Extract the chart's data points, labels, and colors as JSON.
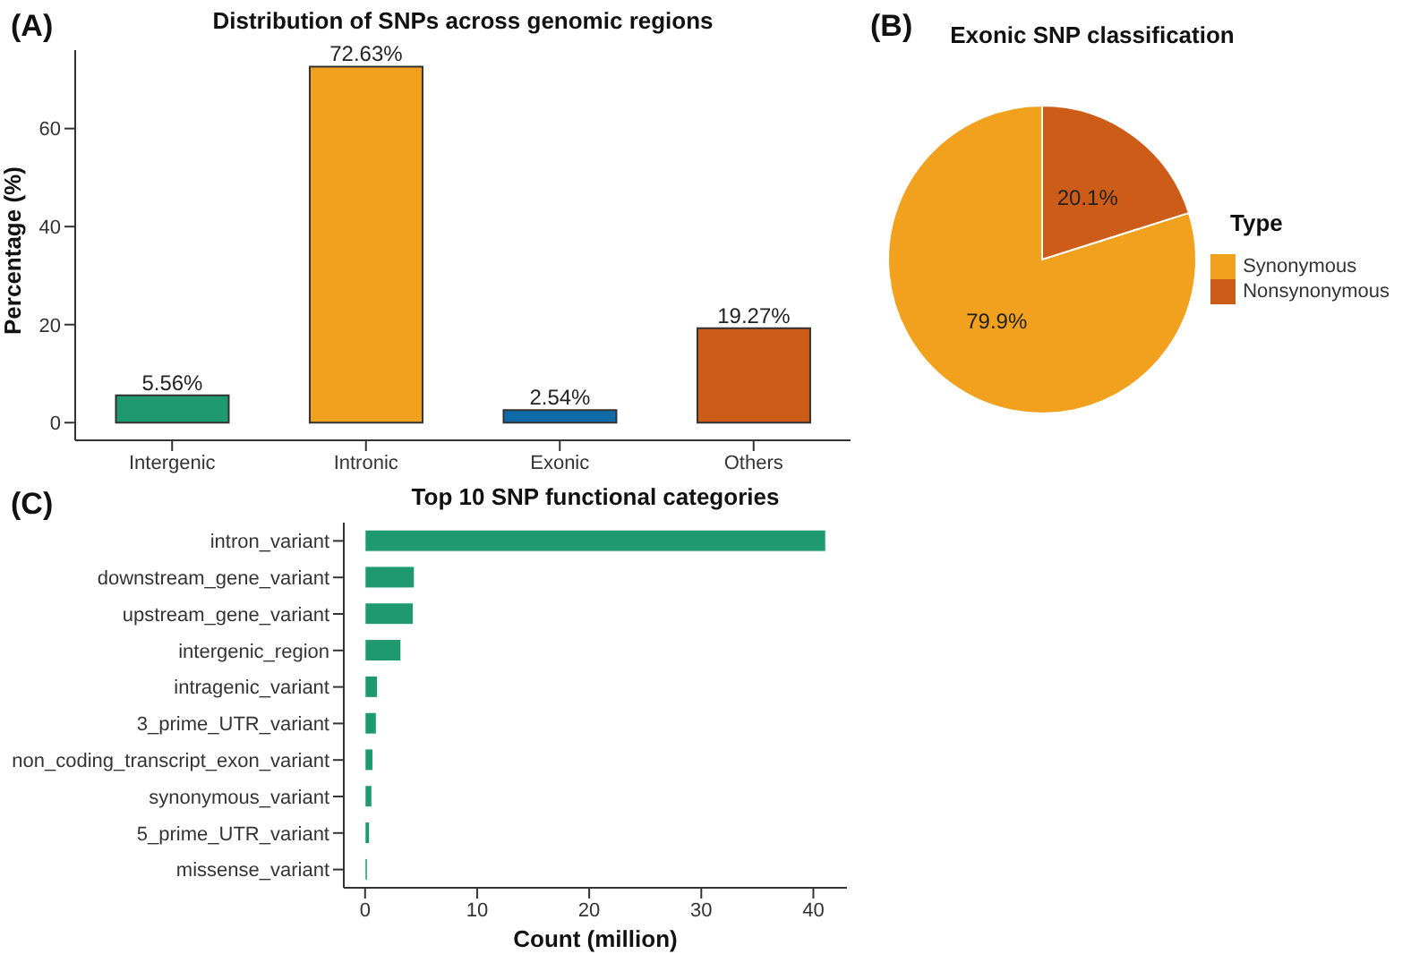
{
  "chart_data": [
    {
      "type": "bar",
      "title": "Distribution of SNPs across genomic regions",
      "ylabel": "Percentage (%)",
      "annotations": [
        "(A)"
      ],
      "categories": [
        "Intergenic",
        "Intronic",
        "Exonic",
        "Others"
      ],
      "values": [
        5.56,
        72.63,
        2.54,
        19.27
      ],
      "colors": [
        "#1f9970",
        "#f2a11f",
        "#0f6aa8",
        "#cc5c17"
      ],
      "value_labels": [
        "5.56%",
        "72.63%",
        "2.54%",
        "19.27%"
      ],
      "ylim": [
        -3.6,
        76
      ],
      "yticks": [
        0,
        20,
        40,
        60
      ],
      "grid": false
    },
    {
      "type": "pie",
      "title": "Exonic SNP classification",
      "legend_title": "Type",
      "annotations": [
        "(B)"
      ],
      "categories": [
        "Synonymous",
        "Nonsynonymous"
      ],
      "values": [
        79.9,
        20.1
      ],
      "colors": [
        "#f2a11f",
        "#cc5c17"
      ],
      "value_labels": [
        "79.9%",
        "20.1%"
      ],
      "legend": "right"
    },
    {
      "type": "bar",
      "orientation": "horizontal",
      "title": "Top 10 SNP functional categories",
      "xlabel": "Count (million)",
      "annotations": [
        "(C)"
      ],
      "categories": [
        "intron_variant",
        "downstream_gene_variant",
        "upstream_gene_variant",
        "intergenic_region",
        "intragenic_variant",
        "3_prime_UTR_variant",
        "non_coding_transcript_exon_variant",
        "synonymous_variant",
        "5_prime_UTR_variant",
        "missense_variant"
      ],
      "values": [
        41.1,
        4.4,
        4.3,
        3.2,
        1.1,
        1.0,
        0.7,
        0.6,
        0.4,
        0.2
      ],
      "color": "#1f9970",
      "xlim": [
        -1.9,
        43
      ],
      "xticks": [
        0,
        10,
        20,
        30,
        40
      ],
      "grid": false
    }
  ]
}
